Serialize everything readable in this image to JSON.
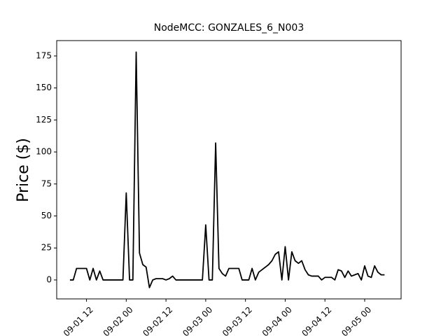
{
  "chart_data": {
    "type": "line",
    "title": "NodeMCC: GONZALES_6_N003",
    "y_label": "Price ($)",
    "x": [
      "09-01 07",
      "09-01 08",
      "09-01 09",
      "09-01 10",
      "09-01 11",
      "09-01 12",
      "09-01 13",
      "09-01 14",
      "09-01 15",
      "09-01 16",
      "09-01 17",
      "09-01 18",
      "09-01 19",
      "09-01 20",
      "09-01 21",
      "09-01 22",
      "09-01 23",
      "09-02 00",
      "09-02 01",
      "09-02 02",
      "09-02 03",
      "09-02 04",
      "09-02 05",
      "09-02 06",
      "09-02 07",
      "09-02 08",
      "09-02 09",
      "09-02 10",
      "09-02 11",
      "09-02 12",
      "09-02 13",
      "09-02 14",
      "09-02 15",
      "09-02 16",
      "09-02 17",
      "09-02 18",
      "09-02 19",
      "09-02 20",
      "09-02 21",
      "09-02 22",
      "09-02 23",
      "09-03 00",
      "09-03 01",
      "09-03 02",
      "09-03 03",
      "09-03 04",
      "09-03 05",
      "09-03 06",
      "09-03 07",
      "09-03 08",
      "09-03 09",
      "09-03 10",
      "09-03 11",
      "09-03 12",
      "09-03 13",
      "09-03 14",
      "09-03 15",
      "09-03 16",
      "09-03 17",
      "09-03 18",
      "09-03 19",
      "09-03 20",
      "09-03 21",
      "09-03 22",
      "09-03 23",
      "09-04 00",
      "09-04 01",
      "09-04 02",
      "09-04 03",
      "09-04 04",
      "09-04 05",
      "09-04 06",
      "09-04 07",
      "09-04 08",
      "09-04 09",
      "09-04 10",
      "09-04 11",
      "09-04 12",
      "09-04 13",
      "09-04 14",
      "09-04 15",
      "09-04 16",
      "09-04 17",
      "09-04 18",
      "09-04 19",
      "09-04 20",
      "09-04 21",
      "09-04 22",
      "09-04 23",
      "09-05 00",
      "09-05 01",
      "09-05 02",
      "09-05 03",
      "09-05 04",
      "09-05 05",
      "09-05 06"
    ],
    "series": [
      {
        "color": "#000000",
        "values": [
          0,
          0,
          9,
          9,
          9,
          9,
          0,
          9,
          0,
          7,
          0,
          0,
          0,
          0,
          0,
          0,
          0,
          68,
          0,
          0,
          178,
          21,
          12,
          10,
          -6,
          0,
          1,
          1,
          1,
          0,
          1,
          3,
          0,
          0,
          0,
          0,
          0,
          0,
          0,
          0,
          0,
          43,
          0,
          0,
          107,
          9,
          5,
          3,
          9,
          9,
          9,
          9,
          0,
          0,
          0,
          9,
          0,
          6,
          8,
          10,
          12,
          15,
          20,
          22,
          0,
          26,
          0,
          22,
          15,
          13,
          15,
          8,
          4,
          3,
          3,
          3,
          0,
          2,
          2,
          2,
          0,
          8,
          7,
          2,
          7,
          3,
          4,
          5,
          0,
          11,
          3,
          2,
          11,
          6,
          4,
          4
        ]
      }
    ],
    "xlim": [
      "09-01 03",
      "09-05 11"
    ],
    "xticks": [
      "09-01 12",
      "09-02 00",
      "09-02 12",
      "09-03 00",
      "09-03 12",
      "09-04 00",
      "09-04 12",
      "09-05 00"
    ],
    "ylim": [
      -14.8,
      187
    ],
    "yticks": [
      0,
      25,
      50,
      75,
      100,
      125,
      150,
      175
    ]
  }
}
